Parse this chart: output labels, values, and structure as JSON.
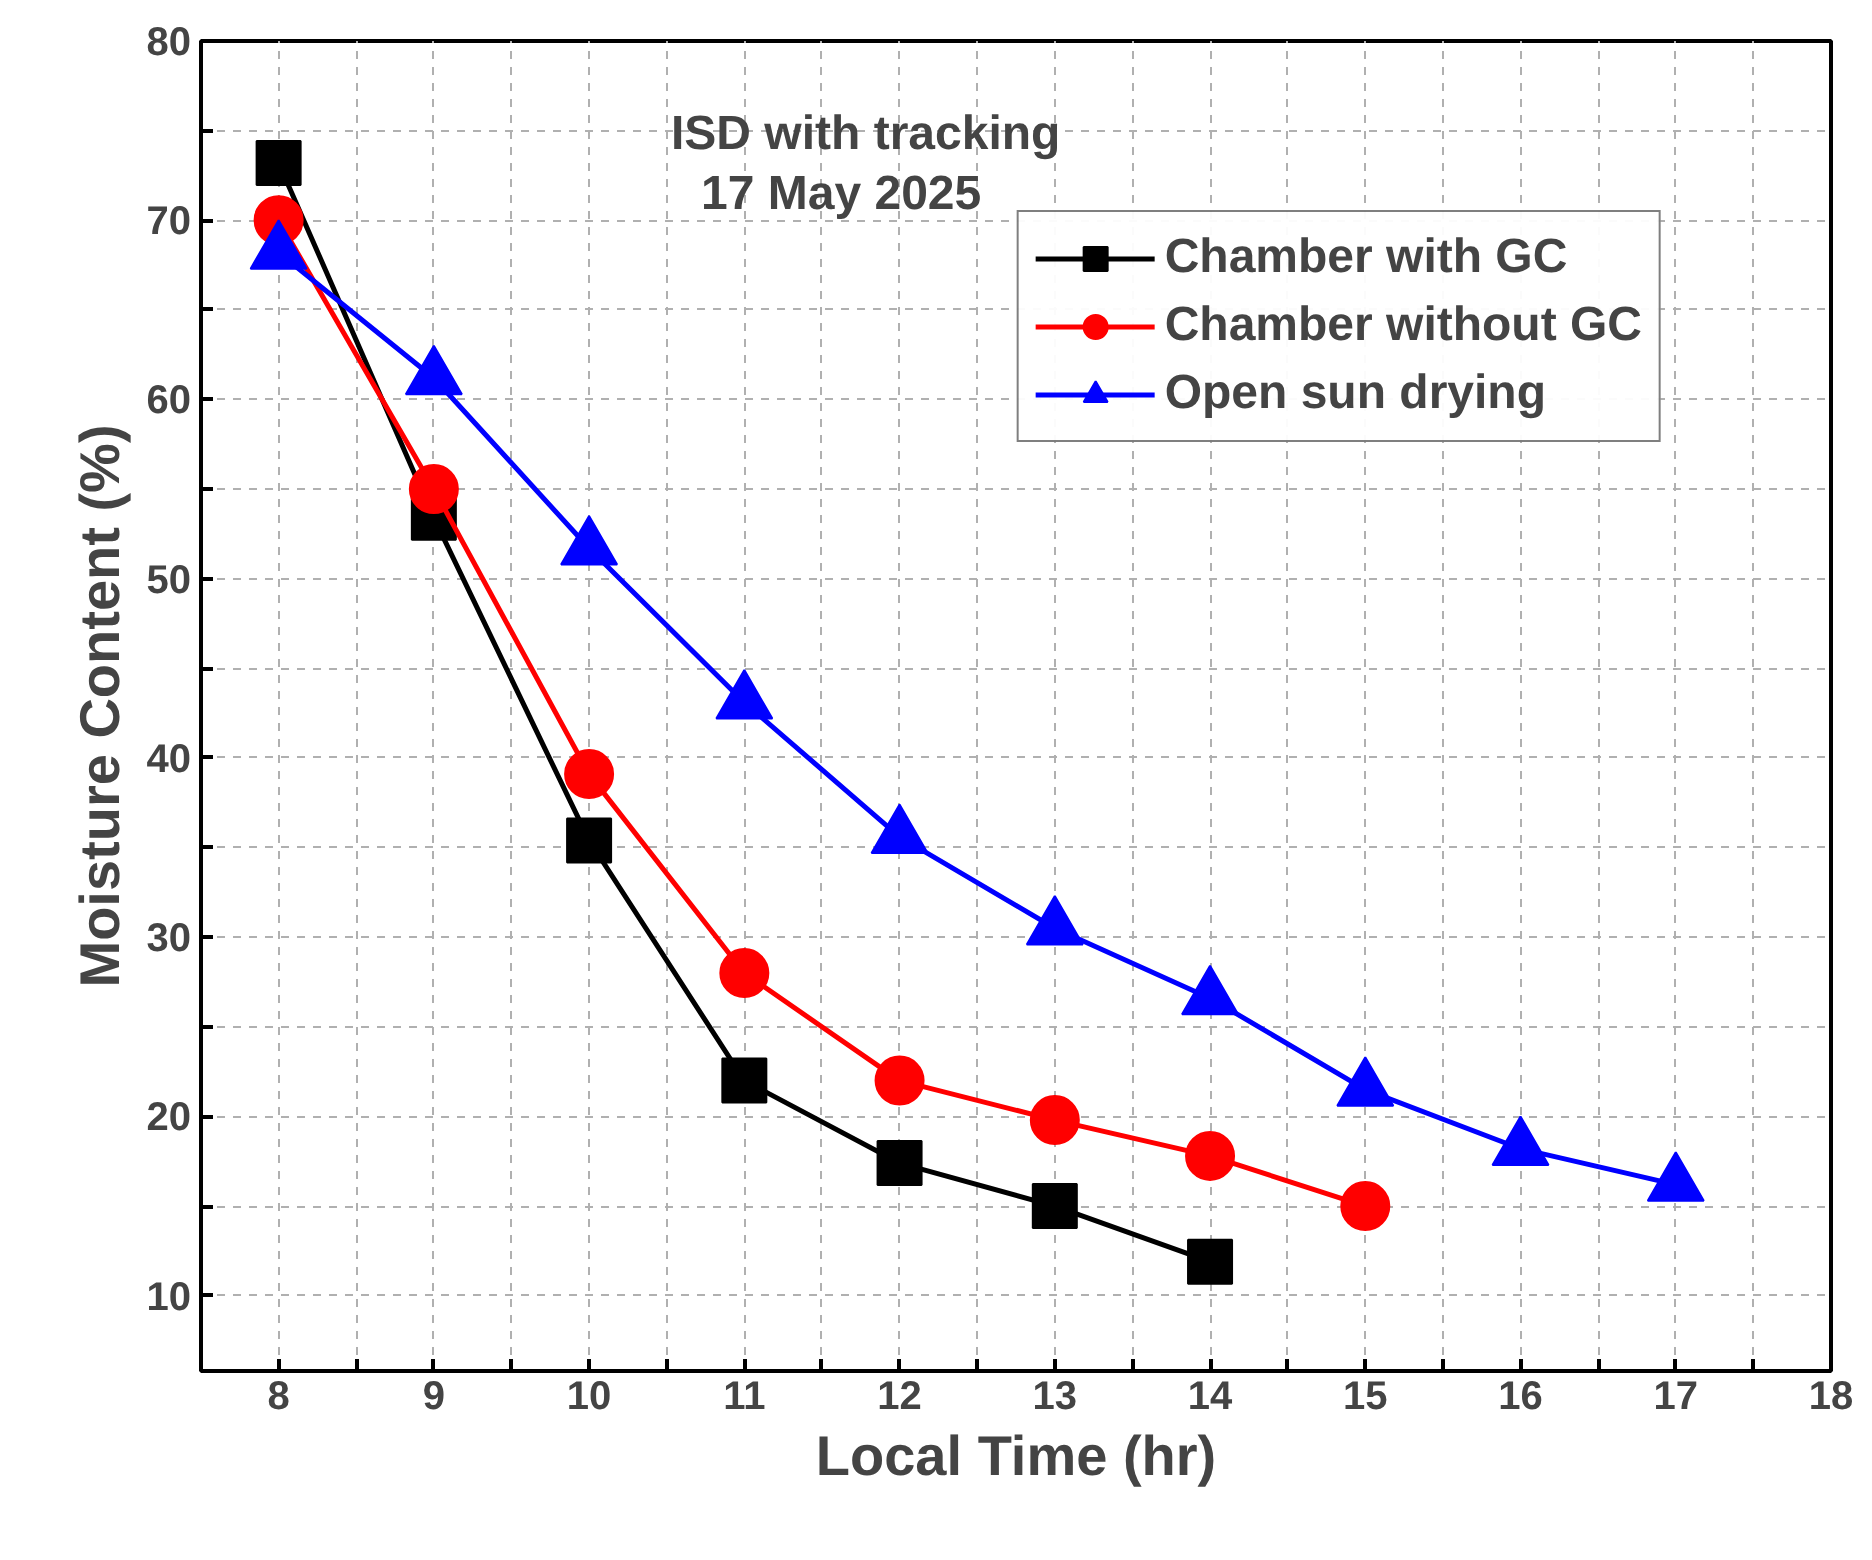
{
  "chart_data": {
    "type": "line",
    "xlabel": "Local Time (hr)",
    "ylabel": "Moisture Content (%)",
    "annotations": [
      "ISD with tracking",
      "17 May 2025"
    ],
    "xlim": [
      7.5,
      18
    ],
    "ylim": [
      5.8,
      80
    ],
    "xticks": [
      8,
      {
        "value": 8.5,
        "label": null
      },
      9,
      {
        "value": 9.5,
        "label": null
      },
      10,
      {
        "value": 10.5,
        "label": null
      },
      11,
      {
        "value": 11.5,
        "label": null
      },
      12,
      {
        "value": 12.5,
        "label": null
      },
      13,
      {
        "value": 13.5,
        "label": null
      },
      14,
      {
        "value": 14.5,
        "label": null
      },
      15,
      {
        "value": 15.5,
        "label": null
      },
      16,
      {
        "value": 16.5,
        "label": null
      },
      17,
      {
        "value": 17.5,
        "label": null
      },
      18
    ],
    "yticks": [
      10,
      {
        "value": 15,
        "label": null
      },
      20,
      {
        "value": 25,
        "label": null
      },
      30,
      {
        "value": 35,
        "label": null
      },
      40,
      {
        "value": 45,
        "label": null
      },
      50,
      {
        "value": 55,
        "label": null
      },
      60,
      {
        "value": 65,
        "label": null
      },
      70,
      {
        "value": 75,
        "label": null
      },
      80
    ],
    "grid": true,
    "legend": "top right",
    "line_style": "solid",
    "series": [
      {
        "name": "Chamber with GC",
        "color": "#000000",
        "marker": "square",
        "x": [
          8,
          9,
          10,
          11,
          12,
          13,
          14
        ],
        "values": [
          73.2,
          53.4,
          35.4,
          22,
          17.4,
          15,
          11.9
        ]
      },
      {
        "name": "Chamber without GC",
        "color": "#ff0000",
        "marker": "circle",
        "x": [
          8,
          9,
          10,
          11,
          12,
          13,
          14,
          15
        ],
        "values": [
          70,
          55,
          39.1,
          28,
          22,
          19.8,
          17.8,
          15
        ]
      },
      {
        "name": "Open sun drying",
        "color": "#0000ff",
        "marker": "triangle",
        "x": [
          8,
          9,
          10,
          11,
          12,
          13,
          14,
          15,
          16,
          17
        ],
        "values": [
          68.2,
          61.2,
          51.7,
          43.1,
          35.6,
          30.5,
          26.6,
          21.5,
          18.2,
          16.2
        ]
      }
    ]
  }
}
